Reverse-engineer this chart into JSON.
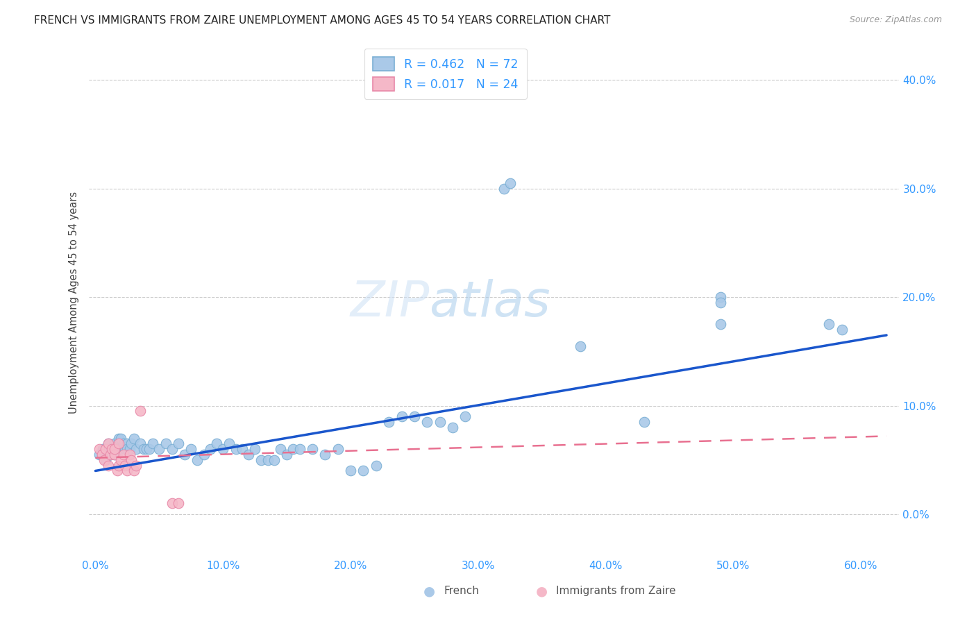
{
  "title": "FRENCH VS IMMIGRANTS FROM ZAIRE UNEMPLOYMENT AMONG AGES 45 TO 54 YEARS CORRELATION CHART",
  "source": "Source: ZipAtlas.com",
  "ylabel": "Unemployment Among Ages 45 to 54 years",
  "xlabel_vals": [
    0.0,
    0.1,
    0.2,
    0.3,
    0.4,
    0.5,
    0.6
  ],
  "ylabel_vals": [
    0.0,
    0.1,
    0.2,
    0.3,
    0.4
  ],
  "xlim": [
    -0.005,
    0.63
  ],
  "ylim": [
    -0.04,
    0.43
  ],
  "french_color": "#aac9e8",
  "french_edge_color": "#7aafd4",
  "zaire_color": "#f5b8c8",
  "zaire_edge_color": "#e888a8",
  "trend_blue": "#1a56cc",
  "trend_pink": "#e87090",
  "legend_R_french": "0.462",
  "legend_N_french": "72",
  "legend_R_zaire": "0.017",
  "legend_N_zaire": "24",
  "french_x": [
    0.003,
    0.006,
    0.008,
    0.01,
    0.01,
    0.012,
    0.013,
    0.015,
    0.015,
    0.016,
    0.018,
    0.018,
    0.02,
    0.02,
    0.022,
    0.023,
    0.025,
    0.025,
    0.027,
    0.028,
    0.03,
    0.032,
    0.035,
    0.038,
    0.04,
    0.042,
    0.045,
    0.05,
    0.055,
    0.06,
    0.065,
    0.07,
    0.075,
    0.08,
    0.085,
    0.09,
    0.095,
    0.1,
    0.105,
    0.11,
    0.115,
    0.12,
    0.125,
    0.13,
    0.135,
    0.14,
    0.145,
    0.15,
    0.155,
    0.16,
    0.17,
    0.18,
    0.19,
    0.2,
    0.21,
    0.22,
    0.23,
    0.24,
    0.25,
    0.26,
    0.27,
    0.28,
    0.29,
    0.32,
    0.325,
    0.38,
    0.43,
    0.49,
    0.575,
    0.585,
    0.49,
    0.49
  ],
  "french_y": [
    0.055,
    0.06,
    0.05,
    0.06,
    0.065,
    0.055,
    0.06,
    0.065,
    0.055,
    0.06,
    0.06,
    0.07,
    0.06,
    0.07,
    0.065,
    0.06,
    0.065,
    0.06,
    0.06,
    0.065,
    0.07,
    0.06,
    0.065,
    0.06,
    0.06,
    0.06,
    0.065,
    0.06,
    0.065,
    0.06,
    0.065,
    0.055,
    0.06,
    0.05,
    0.055,
    0.06,
    0.065,
    0.06,
    0.065,
    0.06,
    0.06,
    0.055,
    0.06,
    0.05,
    0.05,
    0.05,
    0.06,
    0.055,
    0.06,
    0.06,
    0.06,
    0.055,
    0.06,
    0.04,
    0.04,
    0.045,
    0.085,
    0.09,
    0.09,
    0.085,
    0.085,
    0.08,
    0.09,
    0.3,
    0.305,
    0.155,
    0.085,
    0.175,
    0.175,
    0.17,
    0.2,
    0.195
  ],
  "zaire_x": [
    0.003,
    0.005,
    0.007,
    0.008,
    0.01,
    0.01,
    0.012,
    0.013,
    0.015,
    0.015,
    0.017,
    0.018,
    0.018,
    0.02,
    0.022,
    0.023,
    0.025,
    0.027,
    0.028,
    0.03,
    0.032,
    0.035,
    0.06,
    0.065
  ],
  "zaire_y": [
    0.06,
    0.055,
    0.05,
    0.06,
    0.065,
    0.045,
    0.055,
    0.06,
    0.055,
    0.06,
    0.04,
    0.045,
    0.065,
    0.05,
    0.055,
    0.045,
    0.04,
    0.055,
    0.05,
    0.04,
    0.045,
    0.095,
    0.01,
    0.01
  ],
  "french_trend_x": [
    0.0,
    0.62
  ],
  "french_trend_y": [
    0.04,
    0.165
  ],
  "zaire_trend_x": [
    0.0,
    0.62
  ],
  "zaire_trend_y": [
    0.052,
    0.072
  ]
}
